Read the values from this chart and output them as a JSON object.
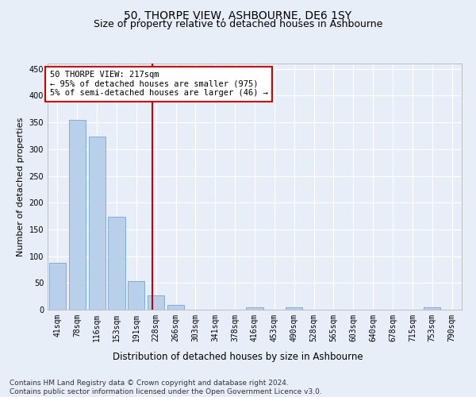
{
  "title": "50, THORPE VIEW, ASHBOURNE, DE6 1SY",
  "subtitle": "Size of property relative to detached houses in Ashbourne",
  "xlabel": "Distribution of detached houses by size in Ashbourne",
  "ylabel": "Number of detached properties",
  "categories": [
    "41sqm",
    "78sqm",
    "116sqm",
    "153sqm",
    "191sqm",
    "228sqm",
    "266sqm",
    "303sqm",
    "341sqm",
    "378sqm",
    "416sqm",
    "453sqm",
    "490sqm",
    "528sqm",
    "565sqm",
    "603sqm",
    "640sqm",
    "678sqm",
    "715sqm",
    "753sqm",
    "790sqm"
  ],
  "values": [
    88,
    354,
    323,
    174,
    54,
    27,
    9,
    0,
    0,
    0,
    4,
    0,
    5,
    0,
    0,
    0,
    0,
    0,
    0,
    4,
    0
  ],
  "bar_color": "#b8d0ea",
  "bar_edge_color": "#6699cc",
  "vertical_line_x": 4.82,
  "vertical_line_color": "#cc0000",
  "annotation_text": "50 THORPE VIEW: 217sqm\n← 95% of detached houses are smaller (975)\n5% of semi-detached houses are larger (46) →",
  "annotation_box_color": "#ffffff",
  "annotation_box_edge": "#cc0000",
  "ylim": [
    0,
    460
  ],
  "yticks": [
    0,
    50,
    100,
    150,
    200,
    250,
    300,
    350,
    400,
    450
  ],
  "background_color": "#e8eef8",
  "grid_color": "#ffffff",
  "footnote": "Contains HM Land Registry data © Crown copyright and database right 2024.\nContains public sector information licensed under the Open Government Licence v3.0.",
  "title_fontsize": 10,
  "subtitle_fontsize": 9,
  "xlabel_fontsize": 8.5,
  "ylabel_fontsize": 8,
  "tick_fontsize": 7,
  "annotation_fontsize": 7.5,
  "footnote_fontsize": 6.5
}
